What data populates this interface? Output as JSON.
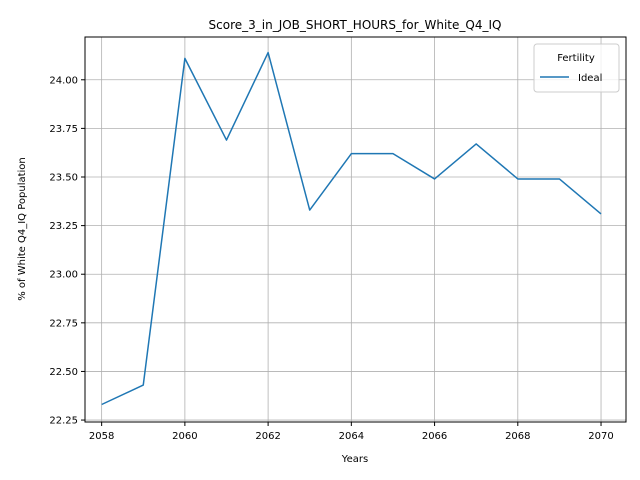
{
  "chart_data": {
    "type": "line",
    "title": "Score_3_in_JOB_SHORT_HOURS_for_White_Q4_IQ",
    "xlabel": "Years",
    "ylabel": "% of White Q4_IQ Population",
    "x": [
      2058,
      2059,
      2060,
      2061,
      2062,
      2063,
      2064,
      2065,
      2066,
      2067,
      2068,
      2069,
      2070
    ],
    "xticks": [
      2058,
      2060,
      2062,
      2064,
      2066,
      2068,
      2070
    ],
    "yticks": [
      22.25,
      22.5,
      22.75,
      23.0,
      23.25,
      23.5,
      23.75,
      24.0
    ],
    "ytick_labels": [
      "22.25",
      "22.50",
      "22.75",
      "23.00",
      "23.25",
      "23.50",
      "23.75",
      "24.00"
    ],
    "xlim": [
      2057.6,
      2070.6
    ],
    "ylim": [
      22.24,
      24.22
    ],
    "grid": true,
    "legend": {
      "title": "Fertility",
      "placement": "top-right"
    },
    "series": [
      {
        "name": "Ideal",
        "color": "#1f77b4",
        "values": [
          22.33,
          22.43,
          24.11,
          23.69,
          24.14,
          23.33,
          23.62,
          23.62,
          23.49,
          23.67,
          23.49,
          23.49,
          23.31
        ]
      }
    ]
  }
}
